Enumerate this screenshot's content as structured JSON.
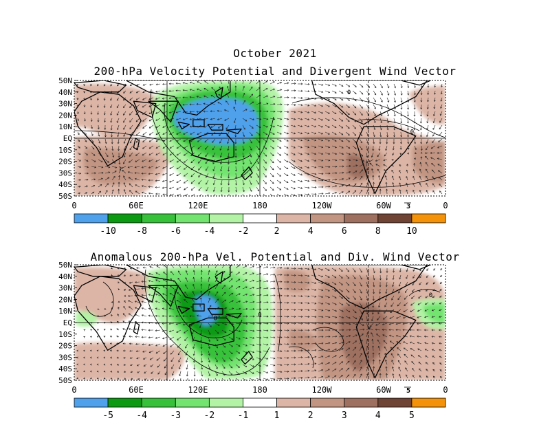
{
  "title": "October 2021",
  "top_panel": {
    "title": "200-hPa Velocity Potential and Divergent Wind Vector",
    "lat_labels": [
      "50N",
      "40N",
      "30N",
      "20N",
      "10N",
      "EQ",
      "10S",
      "20S",
      "30S",
      "40S",
      "50S"
    ],
    "lon_labels": [
      "0",
      "60E",
      "120E",
      "180",
      "120W",
      "60W",
      "0"
    ],
    "vector_ref": "3",
    "colorbar": {
      "colors": [
        "#4fa1ec",
        "#0b9a12",
        "#37c13a",
        "#73e46f",
        "#b2f3a6",
        "#ffffff",
        "#dcb5a6",
        "#c29583",
        "#9e7060",
        "#6f4435",
        "#f4920a"
      ],
      "labels": [
        "-10",
        "-8",
        "-6",
        "-4",
        "-2",
        "2",
        "4",
        "6",
        "8",
        "10"
      ]
    },
    "contour_labels": [
      "0",
      "0"
    ]
  },
  "bottom_panel": {
    "title": "Anomalous 200-hPa Vel. Potential and Div. Wind Vector",
    "lat_labels": [
      "50N",
      "40N",
      "30N",
      "20N",
      "10N",
      "EQ",
      "10S",
      "20S",
      "30S",
      "40S",
      "50S"
    ],
    "lon_labels": [
      "0",
      "60E",
      "120E",
      "180",
      "120W",
      "60W",
      "0"
    ],
    "vector_ref": "5",
    "colorbar": {
      "colors": [
        "#4fa1ec",
        "#0b9a12",
        "#37c13a",
        "#73e46f",
        "#b2f3a6",
        "#ffffff",
        "#dcb5a6",
        "#c29583",
        "#9e7060",
        "#6f4435",
        "#f4920a"
      ],
      "labels": [
        "-5",
        "-4",
        "-3",
        "-2",
        "-1",
        "1",
        "2",
        "3",
        "4",
        "5"
      ]
    },
    "contour_labels": [
      "0",
      "0",
      "0"
    ]
  }
}
